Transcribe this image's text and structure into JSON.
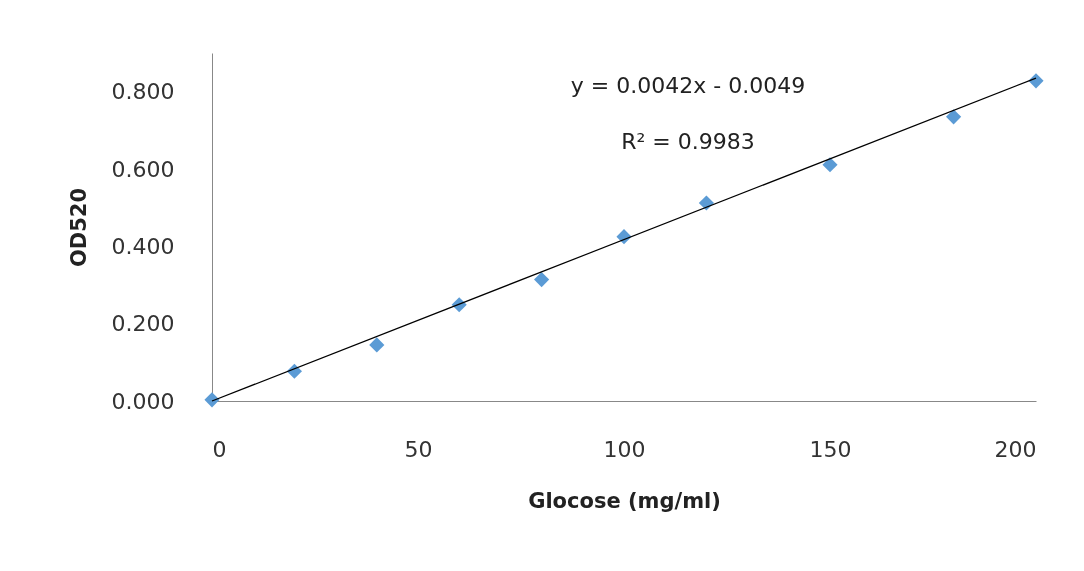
{
  "chart_data": {
    "type": "scatter",
    "xlabel": "Glocose (mg/ml)",
    "ylabel": "OD520",
    "annotations": [
      "y = 0.0042x - 0.0049",
      "R² = 0.9983"
    ],
    "xlim": [
      0,
      200
    ],
    "ylim": [
      0,
      0.9
    ],
    "xticks": [
      0,
      50,
      100,
      150,
      200
    ],
    "yticks": [
      {
        "value": 0,
        "label": "0.000"
      },
      {
        "value": 0.2,
        "label": "0.200"
      },
      {
        "value": 0.4,
        "label": "0.400"
      },
      {
        "value": 0.6,
        "label": "0.600"
      },
      {
        "value": 0.8,
        "label": "0.800"
      }
    ],
    "series": [
      {
        "marker": "diamond",
        "color": "#5b9bd5",
        "x": [
          0,
          20,
          40,
          60,
          80,
          100,
          120,
          150,
          180,
          200
        ],
        "values": [
          0.003,
          0.077,
          0.145,
          0.249,
          0.314,
          0.425,
          0.512,
          0.611,
          0.735,
          0.828
        ]
      },
      {
        "type": "line",
        "color": "#000000",
        "x": [
          0,
          200
        ],
        "values": [
          0.0,
          0.835
        ]
      }
    ]
  }
}
